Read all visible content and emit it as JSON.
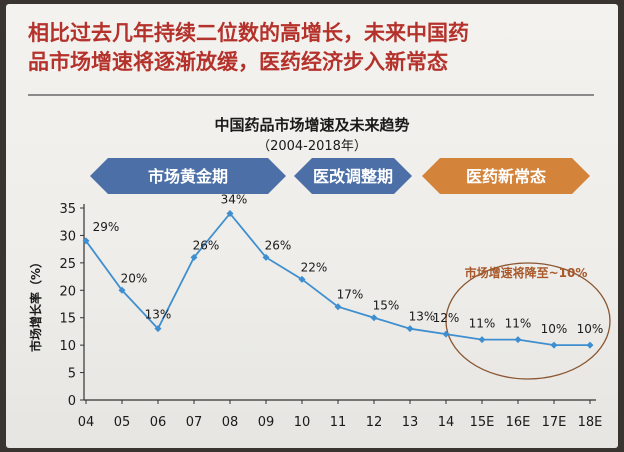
{
  "headline": {
    "line1": "相比过去几年持续二位数的高增长，未来中国药",
    "line2": "品市场增速将逐渐放缓，医药经济步入新常态"
  },
  "phases": [
    {
      "label": "市场黄金期",
      "color": "#4b6fa6"
    },
    {
      "label": "医改调整期",
      "color": "#4b6fa6"
    },
    {
      "label": "医药新常态",
      "color": "#d4833a"
    }
  ],
  "annotation": {
    "text": "市场增速将降至~10%",
    "color": "#a8582a"
  },
  "colors": {
    "line": "#3f8fd0",
    "marker": "#3f8fd0",
    "axis": "#333333",
    "ellipse": "#8a5530"
  },
  "chart_data": {
    "type": "line",
    "title": "中国药品市场增速及未来趋势",
    "subtitle": "（2004-2018年）",
    "ylabel": "市场增长率（%）",
    "xlabel": "",
    "ylim": [
      0,
      35
    ],
    "yticks": [
      0,
      5,
      10,
      15,
      20,
      25,
      30,
      35
    ],
    "grid": false,
    "categories": [
      "04",
      "05",
      "06",
      "07",
      "08",
      "09",
      "10",
      "11",
      "12",
      "13",
      "14",
      "15E",
      "16E",
      "17E",
      "18E"
    ],
    "values": [
      29,
      20,
      13,
      26,
      34,
      26,
      22,
      17,
      15,
      13,
      12,
      11,
      11,
      10,
      10
    ],
    "labels": [
      "29%",
      "20%",
      "13%",
      "26%",
      "34%",
      "26%",
      "22%",
      "17%",
      "15%",
      "13%",
      "12%",
      "11%",
      "11%",
      "10%",
      "10%"
    ]
  }
}
